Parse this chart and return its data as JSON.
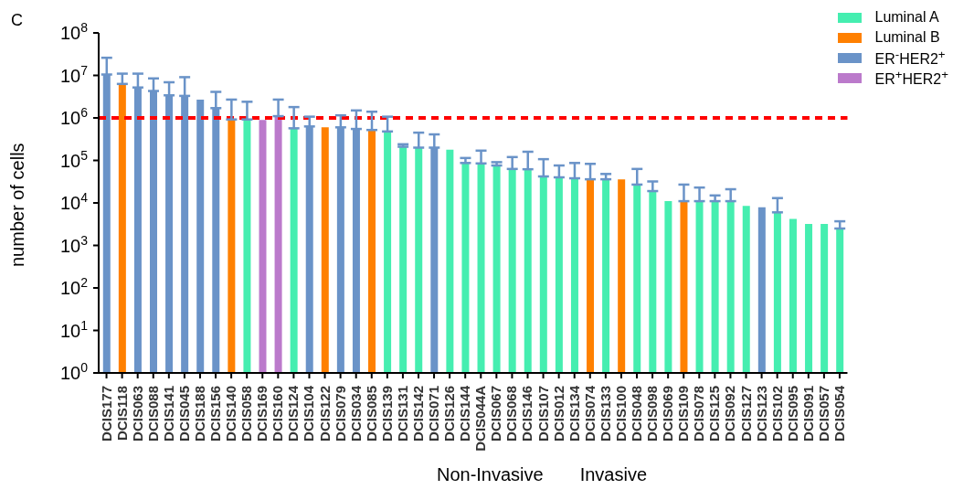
{
  "chart_data": {
    "type": "bar",
    "title": "C",
    "ylabel": "number of cells",
    "log": "y",
    "legend": "top right",
    "categories": [
      "DCIS177",
      "DCIS118",
      "DCIS063",
      "DCIS088",
      "DCIS141",
      "DCIS045",
      "DCIS188",
      "DCIS156",
      "DCIS140",
      "DCIS058",
      "DCIS169",
      "DCIS160",
      "DCIS124",
      "DCIS104",
      "DCIS122",
      "DCIS079",
      "DCIS034",
      "DCIS085",
      "DCIS139",
      "DCIS131",
      "DCIS142",
      "DCIS071",
      "DCIS126",
      "DCIS144",
      "DCIS044A",
      "DCIS067",
      "DCIS068",
      "DCIS146",
      "DCIS107",
      "DCIS012",
      "DCIS134",
      "DCIS074",
      "DCIS133",
      "DCIS100",
      "DCIS048",
      "DCIS098",
      "DCIS069",
      "DCIS109",
      "DCIS078",
      "DCIS125",
      "DCIS092",
      "DCIS127",
      "DCIS123",
      "DCIS102",
      "DCIS095",
      "DCIS091",
      "DCIS057",
      "DCIS054"
    ],
    "ylim": [
      1,
      100000000
    ],
    "yticks": [
      {
        "value": 1,
        "label": "10$^{0}$"
      },
      {
        "value": 10,
        "label": "10$^{1}$"
      },
      {
        "value": 100,
        "label": "10$^{2}$"
      },
      {
        "value": 1000,
        "label": "10$^{3}$"
      },
      {
        "value": 10000,
        "label": "10$^{4}$"
      },
      {
        "value": 100000,
        "label": "10$^{5}$"
      },
      {
        "value": 1000000,
        "label": "10$^{6}$"
      },
      {
        "value": 10000000,
        "label": "10$^{7}$"
      },
      {
        "value": 100000000,
        "label": "10$^{8}$"
      }
    ],
    "series": [
      {
        "name": "Luminal A",
        "color": "#45eeb0",
        "values": [
          null,
          null,
          null,
          null,
          null,
          null,
          null,
          null,
          null,
          920000,
          null,
          null,
          570000,
          null,
          null,
          null,
          null,
          null,
          480000,
          210000,
          200000,
          null,
          180000,
          87000,
          85000,
          76000,
          63000,
          62000,
          42000,
          40000,
          38000,
          null,
          36000,
          null,
          27000,
          19000,
          11000,
          null,
          11000,
          11000,
          11000,
          8500,
          null,
          6000,
          4200,
          3200,
          3200,
          2500
        ],
        "errors": [
          null,
          null,
          null,
          null,
          null,
          null,
          null,
          null,
          null,
          [
            920000,
            2400000
          ],
          null,
          null,
          [
            570000,
            1800000
          ],
          null,
          null,
          null,
          null,
          null,
          [
            480000,
            1070000
          ],
          [
            210000,
            240000
          ],
          [
            200000,
            450000
          ],
          null,
          null,
          [
            87000,
            114000
          ],
          [
            85000,
            170000
          ],
          [
            76000,
            91000
          ],
          [
            63000,
            120000
          ],
          [
            62000,
            160000
          ],
          [
            42000,
            107000
          ],
          [
            40000,
            76000
          ],
          [
            38000,
            87000
          ],
          null,
          [
            36000,
            48000
          ],
          null,
          [
            27000,
            63000
          ],
          [
            19000,
            32000
          ],
          null,
          null,
          [
            11000,
            23000
          ],
          [
            11000,
            15000
          ],
          [
            11000,
            21000
          ],
          null,
          null,
          [
            6000,
            13000
          ],
          null,
          null,
          null,
          [
            2500,
            3700
          ]
        ]
      },
      {
        "name": "Luminal B",
        "color": "#ff8000",
        "values": [
          null,
          6300000,
          null,
          null,
          null,
          null,
          null,
          null,
          920000,
          null,
          null,
          null,
          null,
          null,
          600000,
          null,
          null,
          520000,
          null,
          null,
          null,
          null,
          null,
          null,
          null,
          null,
          null,
          null,
          null,
          null,
          null,
          36000,
          null,
          36000,
          null,
          null,
          null,
          11000,
          null,
          null,
          null,
          null,
          null,
          null,
          null,
          null,
          null,
          null
        ],
        "errors": [
          null,
          [
            6300000,
            11000000
          ],
          null,
          null,
          null,
          null,
          null,
          null,
          [
            920000,
            2700000
          ],
          null,
          null,
          null,
          null,
          null,
          null,
          null,
          null,
          [
            520000,
            1400000
          ],
          null,
          null,
          null,
          null,
          null,
          null,
          null,
          null,
          null,
          null,
          null,
          null,
          null,
          [
            36000,
            83000
          ],
          null,
          null,
          null,
          null,
          null,
          [
            11000,
            27000
          ],
          null,
          null,
          null,
          null,
          null,
          null,
          null,
          null,
          null,
          null
        ]
      },
      {
        "name": "ER$^{-}$HER2$^{+}$",
        "color": "#6a93c8",
        "values": [
          10500000,
          null,
          5200000,
          4300000,
          3400000,
          3300000,
          2700000,
          1700000,
          null,
          null,
          null,
          null,
          null,
          630000,
          null,
          600000,
          550000,
          null,
          null,
          null,
          null,
          200000,
          null,
          null,
          null,
          null,
          null,
          null,
          null,
          null,
          null,
          null,
          null,
          null,
          null,
          null,
          null,
          null,
          null,
          null,
          null,
          null,
          7900,
          null,
          null,
          null,
          null,
          null
        ],
        "errors": [
          [
            10500000,
            26000000
          ],
          null,
          [
            5200000,
            11000000
          ],
          [
            4300000,
            8500000
          ],
          [
            3400000,
            6900000
          ],
          [
            3300000,
            9100000
          ],
          null,
          [
            1700000,
            4100000
          ],
          null,
          null,
          null,
          null,
          null,
          [
            630000,
            1070000
          ],
          null,
          [
            600000,
            1150000
          ],
          [
            550000,
            1500000
          ],
          null,
          null,
          null,
          null,
          [
            200000,
            410000
          ],
          null,
          null,
          null,
          null,
          null,
          null,
          null,
          null,
          null,
          null,
          null,
          null,
          null,
          null,
          null,
          null,
          null,
          null,
          null,
          null,
          null,
          null,
          null,
          null,
          null,
          null
        ]
      },
      {
        "name": "ER$^{+}$HER2$^{+}$",
        "color": "#bb7acb",
        "values": [
          null,
          null,
          null,
          null,
          null,
          null,
          null,
          null,
          null,
          null,
          900000,
          1100000,
          null,
          null,
          null,
          null,
          null,
          null,
          null,
          null,
          null,
          null,
          null,
          null,
          null,
          null,
          null,
          null,
          null,
          null,
          null,
          null,
          null,
          null,
          null,
          null,
          null,
          null,
          null,
          null,
          null,
          null,
          null,
          null,
          null,
          null,
          null,
          null
        ],
        "errors": [
          null,
          null,
          null,
          null,
          null,
          null,
          null,
          null,
          null,
          null,
          null,
          [
            1100000,
            2700000
          ],
          null,
          null,
          null,
          null,
          null,
          null,
          null,
          null,
          null,
          null,
          null,
          null,
          null,
          null,
          null,
          null,
          null,
          null,
          null,
          null,
          null,
          null,
          null,
          null,
          null,
          null,
          null,
          null,
          null,
          null,
          null,
          null,
          null,
          null,
          null,
          null
        ]
      }
    ],
    "ref_lines": [
      {
        "axis": "y",
        "value": 1000000,
        "color": "#ff0000",
        "line_style": "dashed"
      }
    ],
    "annotations": [
      "Non-Invasive",
      "Invasive"
    ]
  }
}
